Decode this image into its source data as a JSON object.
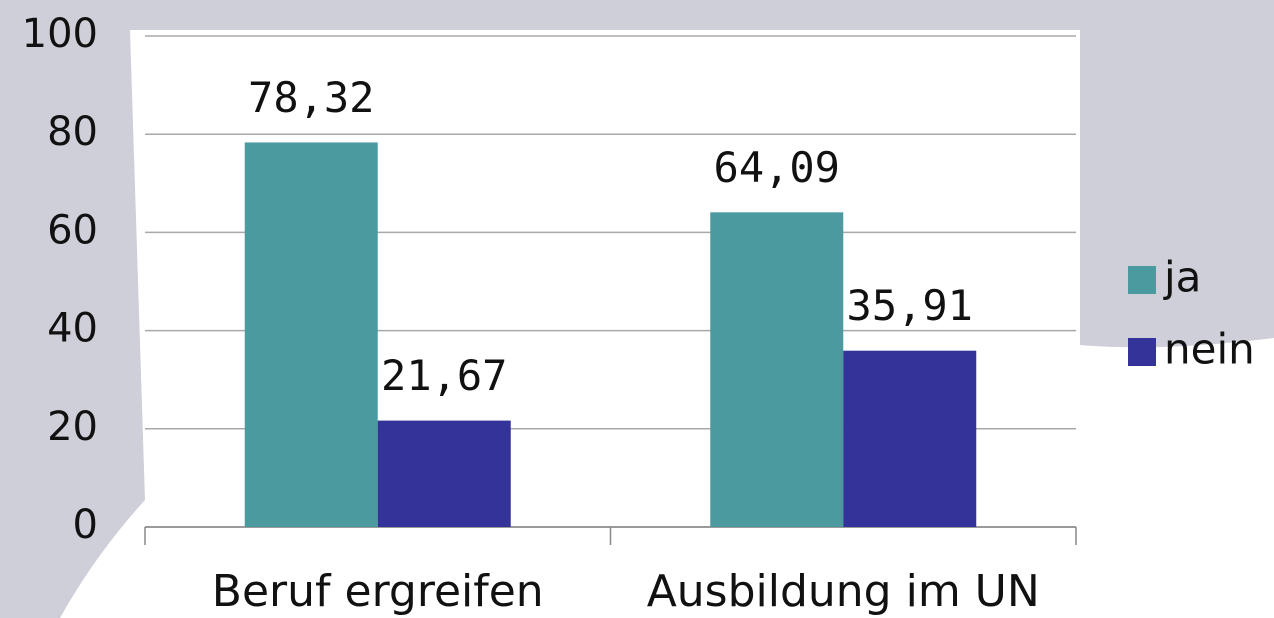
{
  "chart_data": {
    "type": "bar",
    "categories": [
      "Beruf ergreifen",
      "Ausbildung im UN"
    ],
    "series": [
      {
        "name": "ja",
        "color": "#4a9aa0",
        "values": [
          78.32,
          64.09
        ],
        "value_labels": [
          "78,32",
          "64,09"
        ]
      },
      {
        "name": "nein",
        "color": "#333399",
        "values": [
          21.67,
          35.91
        ],
        "value_labels": [
          "21,67",
          "35,91"
        ]
      }
    ],
    "ylim": [
      0,
      100
    ],
    "yticks": [
      0,
      20,
      40,
      60,
      80,
      100
    ],
    "grid": true,
    "legend": "right"
  }
}
